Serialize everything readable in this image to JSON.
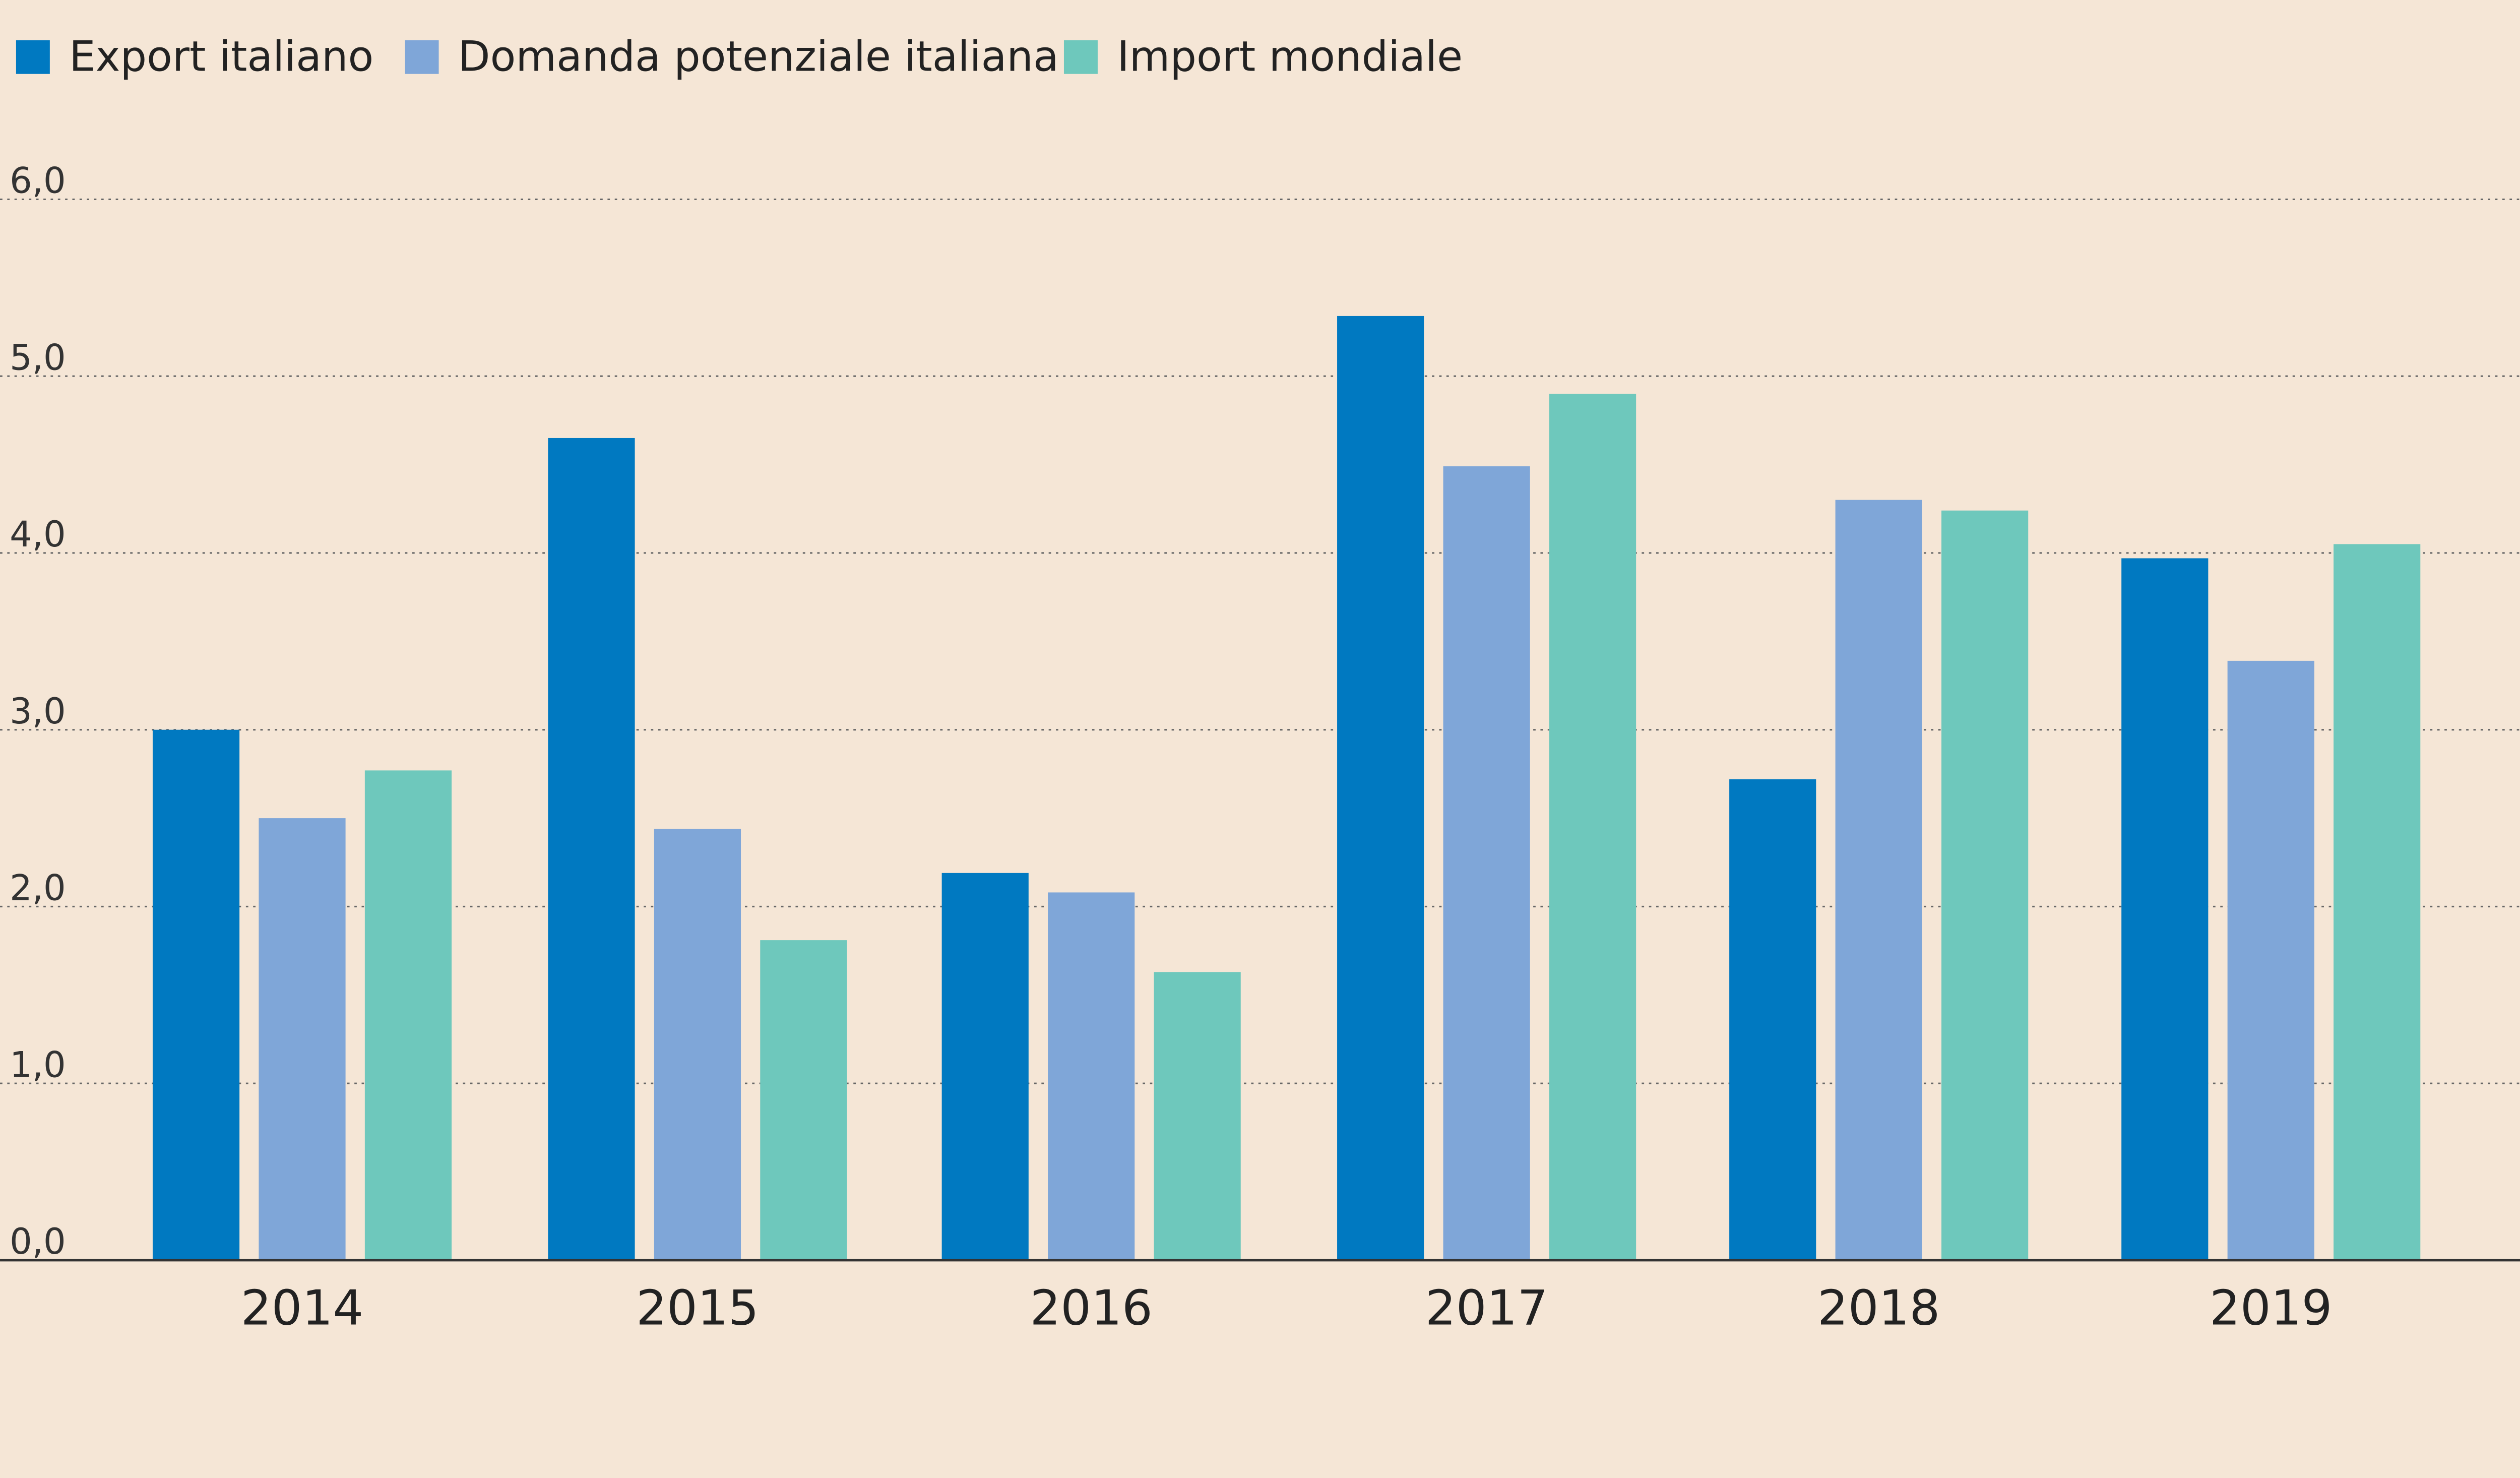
{
  "chart_data": {
    "type": "bar",
    "title": "",
    "xlabel": "",
    "ylabel": "",
    "categories": [
      "2014",
      "2015",
      "2016",
      "2017",
      "2018",
      "2019"
    ],
    "series": [
      {
        "name": "Export italiano",
        "color": "#0079c1",
        "values": [
          3.0,
          4.65,
          2.19,
          5.34,
          2.72,
          3.97
        ]
      },
      {
        "name": "Domanda potenziale italiana",
        "color": "#7fa6d8",
        "values": [
          2.5,
          2.44,
          2.08,
          4.49,
          4.3,
          3.39
        ]
      },
      {
        "name": "Import mondiale",
        "color": "#6ec8bc",
        "values": [
          2.77,
          1.81,
          1.63,
          4.9,
          4.24,
          4.05
        ]
      }
    ],
    "ylim": [
      0,
      6
    ],
    "yticks": [
      "0,0",
      "1,0",
      "2,0",
      "3,0",
      "4,0",
      "5,0",
      "6,0"
    ],
    "grid": true,
    "grid_style": "dotted",
    "legend_position": "top-left",
    "background": "#f5e6d6"
  }
}
